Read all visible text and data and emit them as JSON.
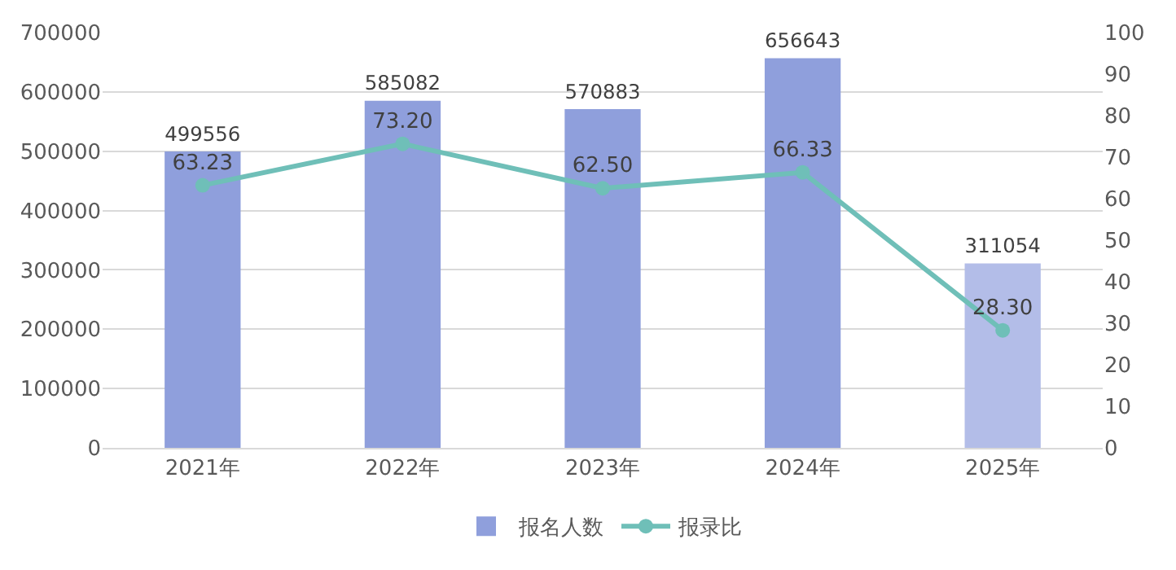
{
  "chart_data": {
    "type": "bar",
    "categories": [
      "2021年",
      "2022年",
      "2023年",
      "2024年",
      "2025年"
    ],
    "series": [
      {
        "name": "报名人数",
        "colors": [
          "#8f9fdc",
          "#8f9fdc",
          "#8f9fdc",
          "#8f9fdc",
          "#b3bde8"
        ],
        "values": [
          499556,
          585082,
          570883,
          656643,
          311054
        ],
        "value_labels": [
          "499556",
          "585082",
          "570883",
          "656643",
          "311054"
        ]
      },
      {
        "name": "报录比",
        "type": "line",
        "axis": "y2",
        "color": "#6fbfb8",
        "marker": "circle",
        "values": [
          63.23,
          73.2,
          62.5,
          66.33,
          28.3
        ],
        "value_labels": [
          "63.23",
          "73.20",
          "62.50",
          "66.33",
          "28.30"
        ]
      }
    ],
    "ylim": [
      0,
      700000
    ],
    "yticks": [
      0,
      100000,
      200000,
      300000,
      400000,
      500000,
      600000,
      700000
    ],
    "y2lim": [
      0,
      100
    ],
    "y2ticks": [
      0,
      10,
      20,
      30,
      40,
      50,
      60,
      70,
      80,
      90,
      100
    ],
    "grid": "y",
    "legend": "bottom"
  }
}
